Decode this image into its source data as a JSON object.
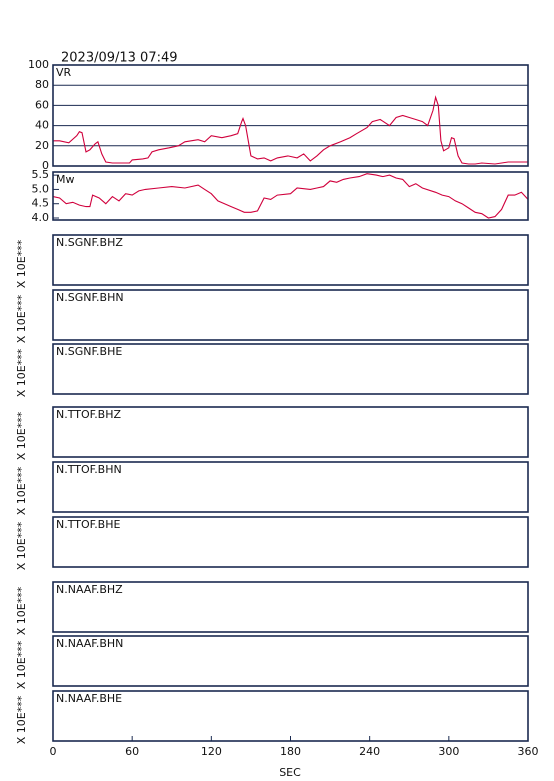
{
  "timestamp": "2023/09/13 07:49",
  "chart_data": [
    {
      "type": "line",
      "title": "VR",
      "color": "#d0003c",
      "grid": true,
      "x": [
        0,
        5,
        12,
        18,
        20,
        22,
        25,
        28,
        32,
        34,
        37,
        40,
        45,
        55,
        58,
        60,
        68,
        72,
        75,
        80,
        88,
        95,
        100,
        110,
        115,
        120,
        128,
        135,
        140,
        143,
        144,
        146,
        150,
        155,
        160,
        165,
        170,
        178,
        185,
        190,
        195,
        200,
        205,
        210,
        218,
        225,
        230,
        238,
        242,
        248,
        255,
        260,
        265,
        270,
        275,
        280,
        284,
        288,
        290,
        292,
        294,
        296,
        300,
        302,
        304,
        307,
        310,
        315,
        320,
        325,
        335,
        340,
        345,
        350,
        360
      ],
      "values": [
        25,
        25,
        23,
        30,
        34,
        33,
        14,
        16,
        22,
        24,
        12,
        4,
        3,
        3,
        3,
        6,
        7,
        8,
        14,
        16,
        18,
        20,
        24,
        26,
        24,
        30,
        28,
        30,
        32,
        44,
        47,
        40,
        10,
        7,
        8,
        5,
        8,
        10,
        8,
        12,
        5,
        10,
        16,
        20,
        24,
        28,
        32,
        38,
        44,
        46,
        40,
        48,
        50,
        48,
        46,
        44,
        40,
        55,
        68,
        60,
        25,
        15,
        18,
        28,
        27,
        10,
        3,
        2,
        2,
        3,
        2,
        3,
        4,
        4,
        4
      ],
      "ylim": [
        0,
        100
      ],
      "yticks": [
        0,
        20,
        40,
        60,
        80,
        100
      ]
    },
    {
      "type": "line",
      "title": "Mw",
      "color": "#d0003c",
      "grid": false,
      "x": [
        0,
        5,
        10,
        15,
        20,
        25,
        28,
        30,
        35,
        40,
        45,
        50,
        55,
        60,
        65,
        70,
        80,
        90,
        100,
        110,
        115,
        120,
        125,
        130,
        135,
        140,
        145,
        150,
        155,
        160,
        165,
        170,
        180,
        185,
        195,
        200,
        205,
        210,
        215,
        220,
        225,
        232,
        238,
        245,
        250,
        255,
        260,
        265,
        270,
        275,
        280,
        290,
        295,
        300,
        305,
        310,
        315,
        320,
        325,
        330,
        335,
        340,
        345,
        350,
        355,
        360
      ],
      "values": [
        4.75,
        4.7,
        4.5,
        4.55,
        4.45,
        4.4,
        4.4,
        4.8,
        4.7,
        4.5,
        4.75,
        4.6,
        4.85,
        4.8,
        4.95,
        5.0,
        5.05,
        5.1,
        5.05,
        5.15,
        5.0,
        4.85,
        4.6,
        4.5,
        4.4,
        4.3,
        4.2,
        4.2,
        4.25,
        4.7,
        4.65,
        4.8,
        4.85,
        5.05,
        5.0,
        5.05,
        5.1,
        5.3,
        5.25,
        5.35,
        5.4,
        5.45,
        5.55,
        5.5,
        5.45,
        5.5,
        5.4,
        5.35,
        5.1,
        5.2,
        5.05,
        4.9,
        4.8,
        4.75,
        4.6,
        4.5,
        4.35,
        4.2,
        4.15,
        4.0,
        4.05,
        4.3,
        4.8,
        4.8,
        4.9,
        4.65
      ],
      "ylim": [
        3.93,
        5.61
      ],
      "yticks": [
        {
          "value": 4,
          "label": "4.0"
        },
        4.5,
        {
          "value": 5,
          "label": "5.0"
        },
        5.5
      ]
    }
  ],
  "traces": [
    {
      "label": "N.SGNF.BHZ",
      "scale": "X 10E***"
    },
    {
      "label": "N.SGNF.BHN",
      "scale": "X 10E***"
    },
    {
      "label": "N.SGNF.BHE",
      "scale": "X 10E***"
    },
    {
      "label": "N.TTOF.BHZ",
      "scale": "X 10E***"
    },
    {
      "label": "N.TTOF.BHN",
      "scale": "X 10E***"
    },
    {
      "label": "N.TTOF.BHE",
      "scale": "X 10E***"
    },
    {
      "label": "N.NAAF.BHZ",
      "scale": "X 10E***"
    },
    {
      "label": "N.NAAF.BHN",
      "scale": "X 10E***"
    },
    {
      "label": "N.NAAF.BHE",
      "scale": "X 10E***"
    }
  ],
  "x_axis": {
    "label": "SEC",
    "xlim": [
      0,
      360
    ],
    "xticks": [
      0,
      60,
      120,
      180,
      240,
      300,
      360
    ]
  }
}
